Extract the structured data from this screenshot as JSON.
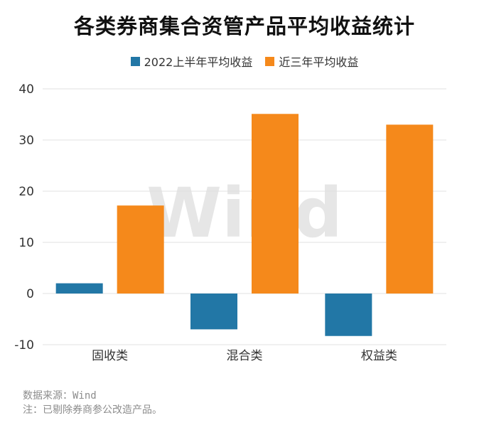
{
  "title": "各类券商集合资管产品平均收益统计",
  "watermark": "Wind",
  "colors": {
    "series1": "#2277a6",
    "series2": "#f5891b"
  },
  "footnotes": {
    "source": "数据来源：Wind",
    "note": "注：已剔除券商参公改造产品。"
  },
  "chart_data": {
    "type": "bar",
    "title": "各类券商集合资管产品平均收益统计",
    "categories": [
      "固收类",
      "混合类",
      "权益类"
    ],
    "series": [
      {
        "name": "2022上半年平均收益",
        "values": [
          2.0,
          -7.0,
          -8.3
        ]
      },
      {
        "name": "近三年平均收益",
        "values": [
          17.2,
          35.1,
          33.0
        ]
      }
    ],
    "yticks": [
      40,
      30,
      20,
      10,
      0,
      -10
    ],
    "ylim": [
      -10,
      40
    ],
    "grid": true,
    "legend": "top-center"
  }
}
